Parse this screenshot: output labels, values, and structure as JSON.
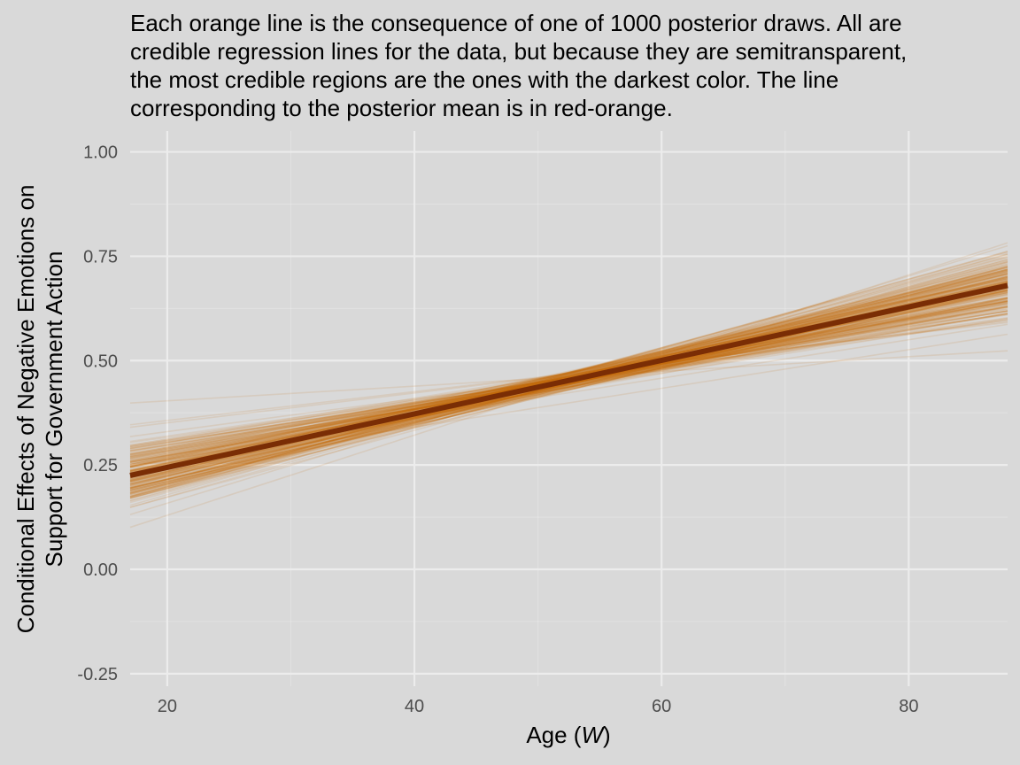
{
  "chart_data": {
    "type": "line",
    "title_lines": [
      "Each orange line is the consequence of one of 1000 posterior draws. All are",
      "credible regression lines for the data, but because they are semitransparent,",
      "the most credible regions are the ones with the darkest color. The line",
      "corresponding to the posterior mean is in red-orange."
    ],
    "xlabel_prefix": "Age (",
    "xlabel_italic": "W",
    "xlabel_suffix": ")",
    "ylabel_lines": [
      "Conditional Effects of Negative Emotions on",
      "Support for Government Action"
    ],
    "xlim": [
      17,
      88
    ],
    "ylim": [
      -0.28,
      1.05
    ],
    "xticks": [
      20,
      40,
      60,
      80
    ],
    "xtick_labels": [
      "20",
      "40",
      "60",
      "80"
    ],
    "yticks": [
      -0.25,
      0,
      0.25,
      0.5,
      0.75,
      1.0
    ],
    "ytick_labels": [
      "-0.25",
      "0.00",
      "0.25",
      "0.50",
      "0.75",
      "1.00"
    ],
    "grid": true,
    "posterior_draws": {
      "count": 1000,
      "color": "#c46a0c",
      "opacity": 0.12
    },
    "posterior_mean": {
      "x": [
        17,
        88
      ],
      "y": [
        0.225,
        0.68
      ],
      "color": "#7a2d05"
    }
  },
  "colors": {
    "background": "#d9d9d9",
    "grid": "#ececec",
    "draws": "#c46a0c",
    "mean_line": "#7a2d05",
    "tick_text": "#4d4d4d"
  }
}
